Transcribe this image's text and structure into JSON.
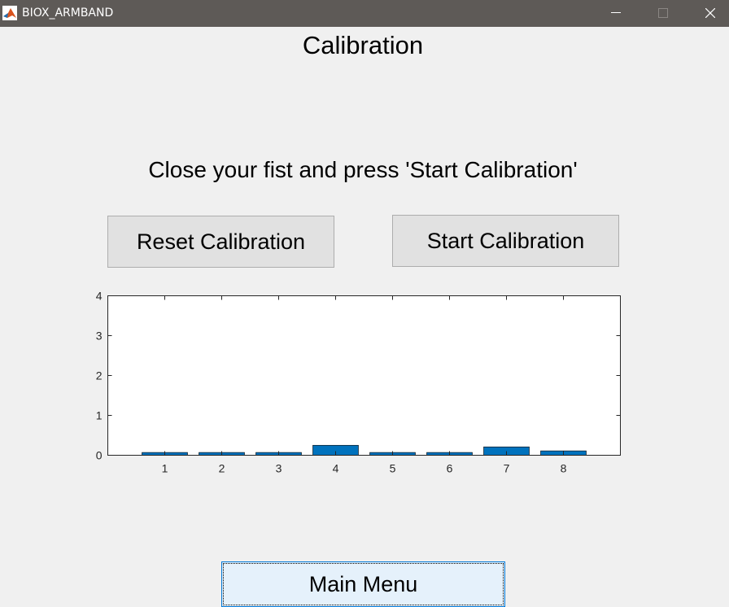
{
  "window": {
    "title": "BIOX_ARMBAND",
    "icons": [
      "matlab-logo-icon",
      "minimize-icon",
      "maximize-icon",
      "close-icon"
    ]
  },
  "page": {
    "title": "Calibration",
    "instruction": "Close your fist and press 'Start Calibration'"
  },
  "buttons": {
    "reset": "Reset Calibration",
    "start": "Start Calibration",
    "main_menu": "Main Menu"
  },
  "chart_data": {
    "type": "bar",
    "categories": [
      "1",
      "2",
      "3",
      "4",
      "5",
      "6",
      "7",
      "8"
    ],
    "values": [
      0.07,
      0.07,
      0.07,
      0.25,
      0.07,
      0.07,
      0.21,
      0.11
    ],
    "title": "",
    "xlabel": "",
    "ylabel": "",
    "xlim": [
      0,
      9
    ],
    "ylim": [
      0,
      4
    ],
    "yticks": [
      0,
      1,
      2,
      3,
      4
    ],
    "grid": false,
    "bar_color": "#0072bd"
  }
}
